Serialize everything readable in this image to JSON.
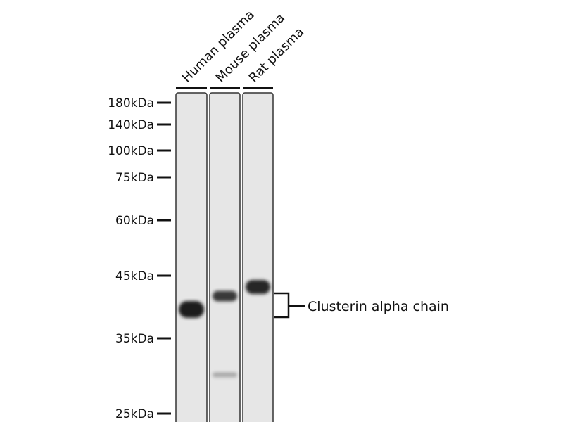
{
  "lanes": [
    {
      "label": "Human plasma",
      "bands": [
        {
          "kda": 38,
          "intensity": 1.0
        }
      ]
    },
    {
      "label": "Mouse plasma",
      "bands": [
        {
          "kda": 40,
          "intensity": 0.85
        },
        {
          "kda": 29,
          "intensity": 0.3
        }
      ]
    },
    {
      "label": "Rat plasma",
      "bands": [
        {
          "kda": 42,
          "intensity": 0.95
        }
      ]
    }
  ],
  "markers": [
    "180kDa",
    "140kDa",
    "100kDa",
    "75kDa",
    "60kDa",
    "45kDa",
    "35kDa",
    "25kDa"
  ],
  "target_label": "Clusterin alpha chain",
  "colors": {
    "membrane": "#e6e6e6",
    "band": "#1a1a1a",
    "ink": "#111111"
  }
}
